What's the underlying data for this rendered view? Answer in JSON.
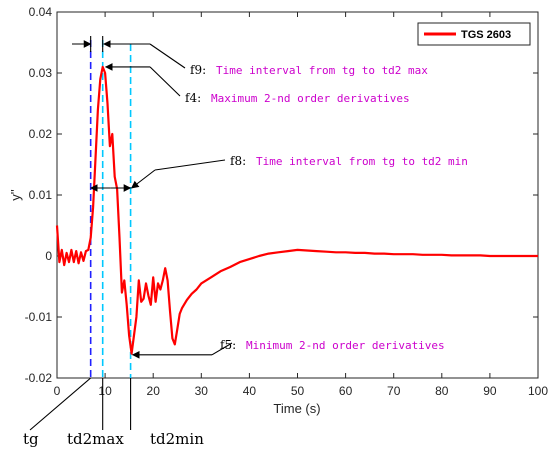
{
  "chart_data": {
    "type": "line",
    "xlabel": "Time (s)",
    "ylabel": "y''",
    "xlim": [
      0,
      100
    ],
    "ylim": [
      -0.02,
      0.04
    ],
    "xticks": [
      0,
      10,
      20,
      30,
      40,
      50,
      60,
      70,
      80,
      90,
      100
    ],
    "yticks": [
      -0.02,
      -0.01,
      0,
      0.01,
      0.02,
      0.03,
      0.04
    ],
    "ytick_labels": [
      "-0.02",
      "-0.01",
      "0",
      "0.01",
      "0.02",
      "0.03",
      "0.04"
    ],
    "grid": false,
    "legend_position": "top-right",
    "series": [
      {
        "name": "TGS 2603",
        "color": "#ff0000",
        "x": [
          0,
          0.5,
          1,
          1.5,
          2,
          2.5,
          3,
          3.5,
          4,
          4.5,
          5,
          5.5,
          6,
          6.5,
          7,
          7.5,
          8,
          8.5,
          9,
          9.5,
          10,
          10.5,
          11,
          11.5,
          12,
          12.5,
          13,
          13.5,
          14,
          14.5,
          15,
          15.5,
          16,
          16.5,
          17,
          17.5,
          18,
          18.5,
          19,
          19.5,
          20,
          20.5,
          21,
          21.5,
          22,
          22.5,
          23,
          23.5,
          24,
          24.5,
          25,
          25.5,
          26,
          27,
          28,
          29,
          30,
          32,
          34,
          36,
          38,
          40,
          42,
          44,
          46,
          48,
          50,
          52,
          54,
          56,
          58,
          60,
          62,
          64,
          66,
          68,
          70,
          72,
          74,
          76,
          78,
          80,
          82,
          84,
          86,
          88,
          90,
          92,
          94,
          96,
          98,
          100
        ],
        "y": [
          0.005,
          -0.001,
          0.001,
          -0.0015,
          0.0005,
          -0.001,
          0.001,
          -0.001,
          0.0008,
          -0.0012,
          0.0006,
          -0.0008,
          0.0008,
          0.001,
          0.003,
          0.008,
          0.016,
          0.024,
          0.029,
          0.031,
          0.03,
          0.025,
          0.018,
          0.02,
          0.013,
          0.011,
          0.003,
          -0.006,
          -0.004,
          -0.008,
          -0.013,
          -0.016,
          -0.013,
          -0.01,
          -0.004,
          -0.0075,
          -0.007,
          -0.0045,
          -0.0065,
          -0.008,
          -0.0035,
          -0.0075,
          -0.0045,
          -0.0055,
          -0.004,
          -0.002,
          -0.004,
          -0.009,
          -0.0135,
          -0.0145,
          -0.012,
          -0.0095,
          -0.0085,
          -0.0072,
          -0.0062,
          -0.0055,
          -0.0045,
          -0.0035,
          -0.0025,
          -0.0018,
          -0.001,
          -0.0005,
          0,
          0.0004,
          0.0006,
          0.0008,
          0.001,
          0.0009,
          0.0008,
          0.0007,
          0.0006,
          0.0006,
          0.0005,
          0.0005,
          0.0004,
          0.0004,
          0.0003,
          0.0003,
          0.0003,
          0.0002,
          0.0002,
          0.0002,
          0.0001,
          0.0001,
          0.0001,
          0.0001,
          0,
          0,
          0,
          0,
          0,
          0
        ]
      }
    ],
    "markers": [
      {
        "label": "tg",
        "x": 7,
        "color": "#2020ff"
      },
      {
        "label": "td2max",
        "x": 9.5,
        "color": "#00c8ff"
      },
      {
        "label": "td2min",
        "x": 15.3,
        "color": "#00c8ff"
      }
    ],
    "annotations": [
      {
        "key": "f9:",
        "text": "Time interval from tg to td2 max"
      },
      {
        "key": "f4:",
        "text": "Maximum 2-nd order derivatives"
      },
      {
        "key": "f8:",
        "text": "Time interval from tg to td2 min"
      },
      {
        "key": "f5:",
        "text": "Minimum 2-nd order derivatives"
      }
    ]
  }
}
